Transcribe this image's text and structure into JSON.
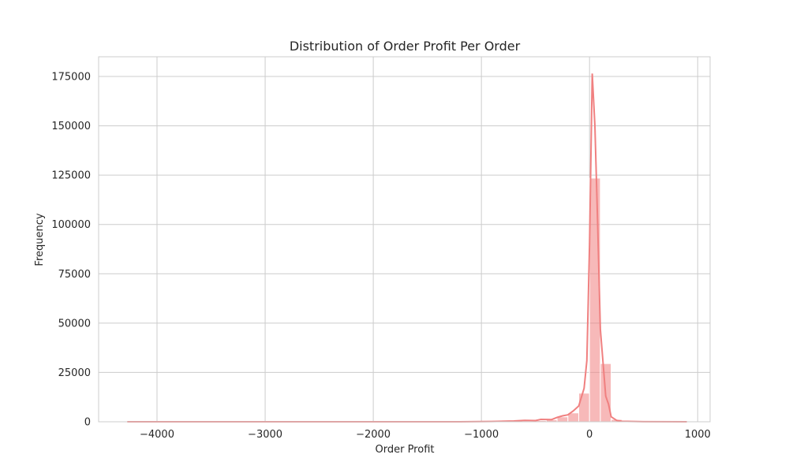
{
  "chart_data": {
    "type": "bar",
    "title": "Distribution of Order Profit Per Order",
    "xlabel": "Order Profit",
    "ylabel": "Frequency",
    "xlim": [
      -4540,
      1115
    ],
    "ylim": [
      0,
      185000
    ],
    "x_ticks": [
      -4000,
      -3000,
      -2000,
      -1000,
      0,
      1000
    ],
    "x_tick_labels": [
      "−4000",
      "−3000",
      "−2000",
      "−1000",
      "0",
      "1000"
    ],
    "y_ticks": [
      0,
      25000,
      50000,
      75000,
      100000,
      125000,
      150000,
      175000
    ],
    "y_tick_labels": [
      "0",
      "25000",
      "50000",
      "75000",
      "100000",
      "125000",
      "150000",
      "175000"
    ],
    "grid": true,
    "bar_color": "#f08080",
    "kde_color": "#f08080",
    "bins": [
      {
        "x0": -700,
        "x1": -600,
        "value": 150
      },
      {
        "x0": -600,
        "x1": -500,
        "value": 300
      },
      {
        "x0": -500,
        "x1": -400,
        "value": 600
      },
      {
        "x0": -400,
        "x1": -300,
        "value": 1000
      },
      {
        "x0": -300,
        "x1": -200,
        "value": 2500
      },
      {
        "x0": -200,
        "x1": -100,
        "value": 4500
      },
      {
        "x0": -100,
        "x1": 0,
        "value": 14500
      },
      {
        "x0": 0,
        "x1": 100,
        "value": 123500
      },
      {
        "x0": 100,
        "x1": 200,
        "value": 29500
      },
      {
        "x0": 200,
        "x1": 300,
        "value": 1200
      },
      {
        "x0": 300,
        "x1": 400,
        "value": 200
      }
    ],
    "kde": [
      {
        "x": -4275,
        "y": 0
      },
      {
        "x": -3000,
        "y": 0
      },
      {
        "x": -2000,
        "y": 0
      },
      {
        "x": -1200,
        "y": 0
      },
      {
        "x": -900,
        "y": 150
      },
      {
        "x": -700,
        "y": 400
      },
      {
        "x": -600,
        "y": 700
      },
      {
        "x": -500,
        "y": 600
      },
      {
        "x": -450,
        "y": 1200
      },
      {
        "x": -350,
        "y": 1100
      },
      {
        "x": -300,
        "y": 2200
      },
      {
        "x": -250,
        "y": 3000
      },
      {
        "x": -200,
        "y": 3500
      },
      {
        "x": -150,
        "y": 5500
      },
      {
        "x": -100,
        "y": 8000
      },
      {
        "x": -50,
        "y": 17000
      },
      {
        "x": -25,
        "y": 31000
      },
      {
        "x": 0,
        "y": 90000
      },
      {
        "x": 25,
        "y": 176500
      },
      {
        "x": 50,
        "y": 150000
      },
      {
        "x": 75,
        "y": 100000
      },
      {
        "x": 100,
        "y": 47000
      },
      {
        "x": 150,
        "y": 13000
      },
      {
        "x": 175,
        "y": 9000
      },
      {
        "x": 200,
        "y": 2500
      },
      {
        "x": 250,
        "y": 700
      },
      {
        "x": 300,
        "y": 250
      },
      {
        "x": 500,
        "y": 50
      },
      {
        "x": 900,
        "y": 0
      }
    ]
  }
}
